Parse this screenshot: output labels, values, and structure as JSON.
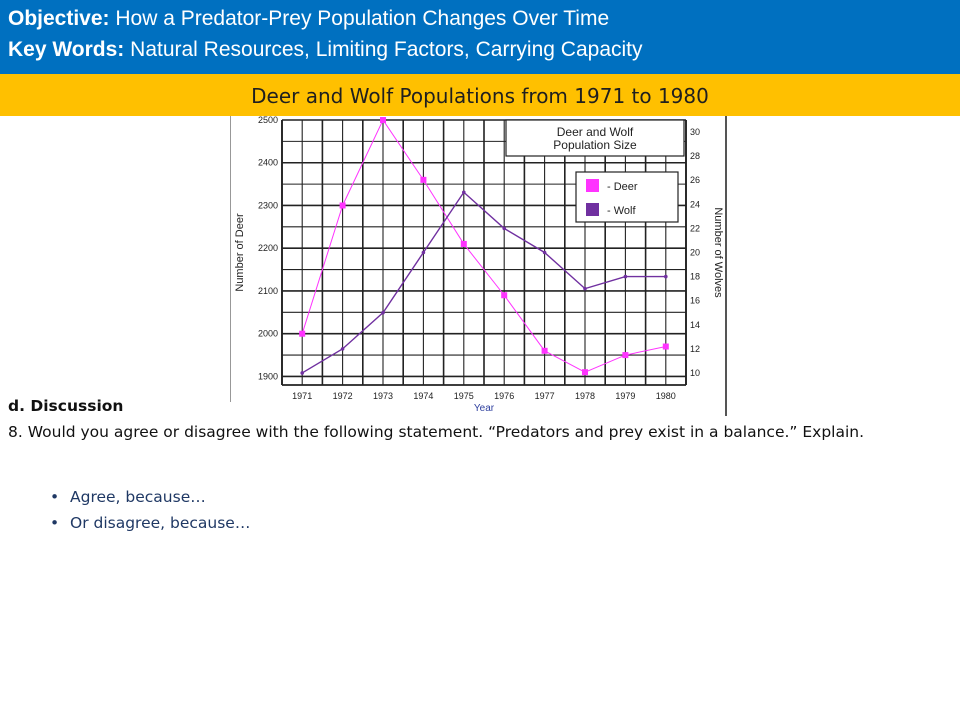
{
  "header": {
    "objective_label": "Objective:",
    "objective_text": " How a Predator-Prey Population Changes Over Time",
    "keywords_label": "Key Words:",
    "keywords_text": " Natural Resources, Limiting Factors, Carrying Capacity"
  },
  "subtitle": "Deer and Wolf Populations from 1971 to 1980",
  "colors": {
    "banner": "#0070c0",
    "subbar": "#ffc000",
    "deer": "#ff33ff",
    "wolf": "#7030a0"
  },
  "chart_data": {
    "type": "line",
    "title_lines": [
      "Deer and Wolf",
      "Population Size"
    ],
    "xlabel": "Year",
    "ylabel": "Number of Deer",
    "y2label": "Number of Wolves",
    "x": [
      "1971",
      "1972",
      "1973",
      "1974",
      "1975",
      "1976",
      "1977",
      "1978",
      "1979",
      "1980"
    ],
    "ylim": [
      1880,
      2500
    ],
    "y_ticks": [
      "1900",
      "2000",
      "2100",
      "2200",
      "2300",
      "2400",
      "2500"
    ],
    "y2lim": [
      9,
      31
    ],
    "y2_ticks": [
      "10",
      "12",
      "14",
      "16",
      "18",
      "20",
      "22",
      "24",
      "26",
      "28",
      "30"
    ],
    "legend": [
      {
        "key": "deer",
        "label": "- Deer"
      },
      {
        "key": "wolf",
        "label": "- Wolf"
      }
    ],
    "legend_position": "top-right",
    "grid": true,
    "series": [
      {
        "key": "deer",
        "axis": "left",
        "values": [
          2000,
          2300,
          2500,
          2360,
          2210,
          2090,
          1960,
          1910,
          1950,
          1970
        ]
      },
      {
        "key": "wolf",
        "axis": "right",
        "values": [
          10,
          12,
          15,
          20,
          25,
          22,
          20,
          17,
          18,
          18
        ]
      }
    ]
  },
  "discussion": {
    "heading": "d. Discussion",
    "question": "8. Would you agree or disagree with the following statement. “Predators and prey exist in a balance.” Explain.",
    "bullet_symbol": "•",
    "bullets": [
      "Agree, because…",
      "Or disagree, because…"
    ]
  }
}
